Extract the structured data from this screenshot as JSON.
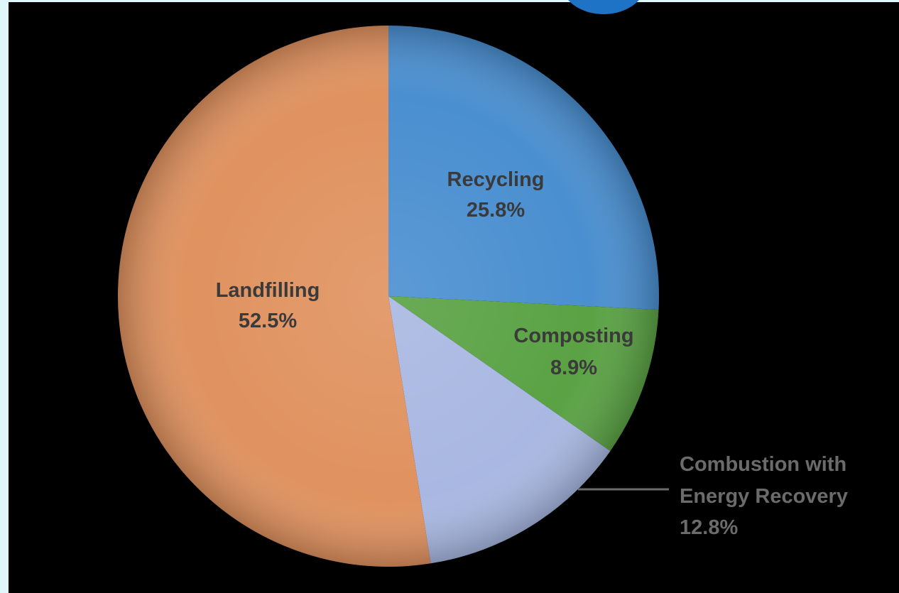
{
  "chart_data": {
    "type": "pie",
    "title": "",
    "legend": "none",
    "slices": [
      {
        "label": "Recycling",
        "value": 25.8,
        "value_label": "25.8%",
        "color": "#4a8fd0"
      },
      {
        "label": "Composting",
        "value": 8.9,
        "value_label": "8.9%",
        "color": "#5aa244"
      },
      {
        "label": "Combustion with Energy Recovery",
        "label_lines": [
          "Combustion with",
          "Energy Recovery"
        ],
        "value": 12.8,
        "value_label": "12.8%",
        "color": "#a9b8e2"
      },
      {
        "label": "Landfilling",
        "value": 52.5,
        "value_label": "52.5%",
        "color": "#e0925f"
      }
    ]
  },
  "theme": {
    "page_background": "#dff6fb",
    "panel_background": "#000000",
    "badge_color": "#1e73c7"
  }
}
